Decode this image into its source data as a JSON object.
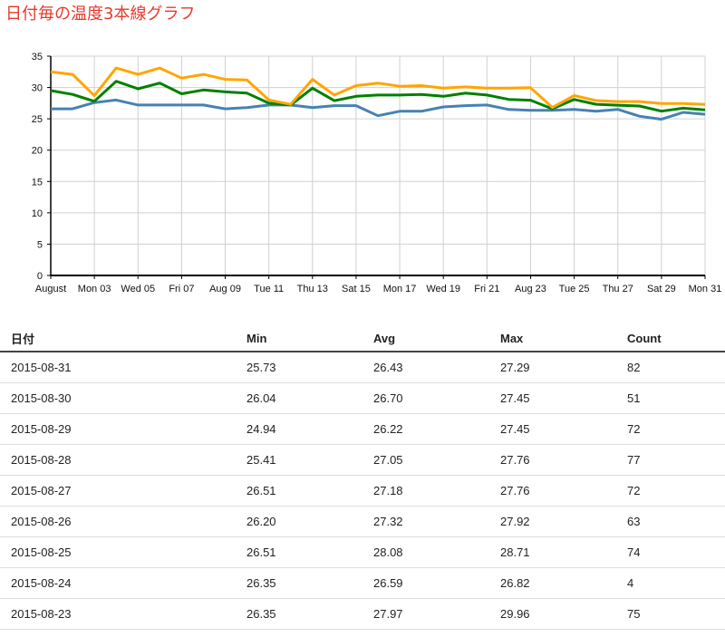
{
  "title": "日付毎の温度3本線グラフ",
  "chart_data": {
    "type": "line",
    "ylim": [
      0,
      35
    ],
    "yticks": [
      0,
      5,
      10,
      15,
      20,
      25,
      30,
      35
    ],
    "grid": true,
    "x": [
      "2015-08-01",
      "2015-08-02",
      "2015-08-03",
      "2015-08-04",
      "2015-08-05",
      "2015-08-06",
      "2015-08-07",
      "2015-08-08",
      "2015-08-09",
      "2015-08-10",
      "2015-08-11",
      "2015-08-12",
      "2015-08-13",
      "2015-08-14",
      "2015-08-15",
      "2015-08-16",
      "2015-08-17",
      "2015-08-18",
      "2015-08-19",
      "2015-08-20",
      "2015-08-21",
      "2015-08-22",
      "2015-08-23",
      "2015-08-24",
      "2015-08-25",
      "2015-08-26",
      "2015-08-27",
      "2015-08-28",
      "2015-08-29",
      "2015-08-30",
      "2015-08-31"
    ],
    "xtick_labels": [
      "August",
      "Mon 03",
      "Wed 05",
      "Fri 07",
      "Aug 09",
      "Tue 11",
      "Thu 13",
      "Sat 15",
      "Mon 17",
      "Wed 19",
      "Fri 21",
      "Aug 23",
      "Tue 25",
      "Thu 27",
      "Sat 29",
      "Mon 31"
    ],
    "series": [
      {
        "color": "#4682b4",
        "values": [
          26.6,
          26.6,
          27.6,
          28.0,
          27.2,
          27.2,
          27.2,
          27.2,
          26.6,
          26.8,
          27.2,
          27.2,
          26.8,
          27.1,
          27.1,
          25.5,
          26.2,
          26.2,
          26.9,
          27.1,
          27.2,
          26.5,
          26.35,
          26.35,
          26.51,
          26.2,
          26.51,
          25.41,
          24.94,
          26.04,
          25.73
        ]
      },
      {
        "color": "#008000",
        "values": [
          29.5,
          28.9,
          27.8,
          31.0,
          29.8,
          30.7,
          29.0,
          29.6,
          29.3,
          29.1,
          27.5,
          27.2,
          29.9,
          27.9,
          28.6,
          28.8,
          28.8,
          28.9,
          28.6,
          29.1,
          28.8,
          28.1,
          27.97,
          26.59,
          28.08,
          27.32,
          27.18,
          27.05,
          26.22,
          26.7,
          26.43
        ]
      },
      {
        "color": "#ffa500",
        "values": [
          32.5,
          32.1,
          28.7,
          33.1,
          32.1,
          33.1,
          31.5,
          32.1,
          31.3,
          31.2,
          28.0,
          27.3,
          31.3,
          28.8,
          30.3,
          30.7,
          30.2,
          30.3,
          29.9,
          30.1,
          29.9,
          29.9,
          29.96,
          26.82,
          28.71,
          27.92,
          27.76,
          27.76,
          27.45,
          27.45,
          27.29
        ]
      }
    ]
  },
  "table": {
    "headers": {
      "date": "日付",
      "min": "Min",
      "avg": "Avg",
      "max": "Max",
      "count": "Count"
    },
    "rows": [
      {
        "date": "2015-08-31",
        "min": "25.73",
        "avg": "26.43",
        "max": "27.29",
        "count": "82"
      },
      {
        "date": "2015-08-30",
        "min": "26.04",
        "avg": "26.70",
        "max": "27.45",
        "count": "51"
      },
      {
        "date": "2015-08-29",
        "min": "24.94",
        "avg": "26.22",
        "max": "27.45",
        "count": "72"
      },
      {
        "date": "2015-08-28",
        "min": "25.41",
        "avg": "27.05",
        "max": "27.76",
        "count": "77"
      },
      {
        "date": "2015-08-27",
        "min": "26.51",
        "avg": "27.18",
        "max": "27.76",
        "count": "72"
      },
      {
        "date": "2015-08-26",
        "min": "26.20",
        "avg": "27.32",
        "max": "27.92",
        "count": "63"
      },
      {
        "date": "2015-08-25",
        "min": "26.51",
        "avg": "28.08",
        "max": "28.71",
        "count": "74"
      },
      {
        "date": "2015-08-24",
        "min": "26.35",
        "avg": "26.59",
        "max": "26.82",
        "count": "4"
      },
      {
        "date": "2015-08-23",
        "min": "26.35",
        "avg": "27.97",
        "max": "29.96",
        "count": "75"
      }
    ]
  }
}
